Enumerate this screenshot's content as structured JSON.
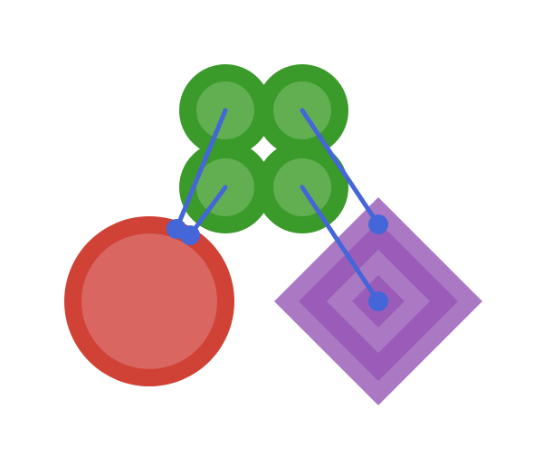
{
  "scene": {
    "background_color": "#ffffff",
    "palette": {
      "green_dark": "#3a9a2a",
      "green_light": "#62af52",
      "red_dark": "#d04136",
      "red_light": "#d96661",
      "purple_light": "#ab79c3",
      "purple_dark": "#9a5cb8",
      "connector_blue": "#4466d8"
    },
    "shapes": [
      {
        "name": "green-circle-cluster",
        "kind": "four-circle-cluster"
      },
      {
        "name": "red-circle",
        "kind": "circle"
      },
      {
        "name": "purple-diamond",
        "kind": "concentric-diamond"
      }
    ],
    "connectors": [
      {
        "name": "connector-1",
        "from": "green-circle-cluster",
        "to": "red-circle"
      },
      {
        "name": "connector-2",
        "from": "green-circle-cluster",
        "to": "red-circle"
      },
      {
        "name": "connector-3",
        "from": "green-circle-cluster",
        "to": "purple-diamond"
      },
      {
        "name": "connector-4",
        "from": "green-circle-cluster",
        "to": "purple-diamond"
      }
    ]
  }
}
